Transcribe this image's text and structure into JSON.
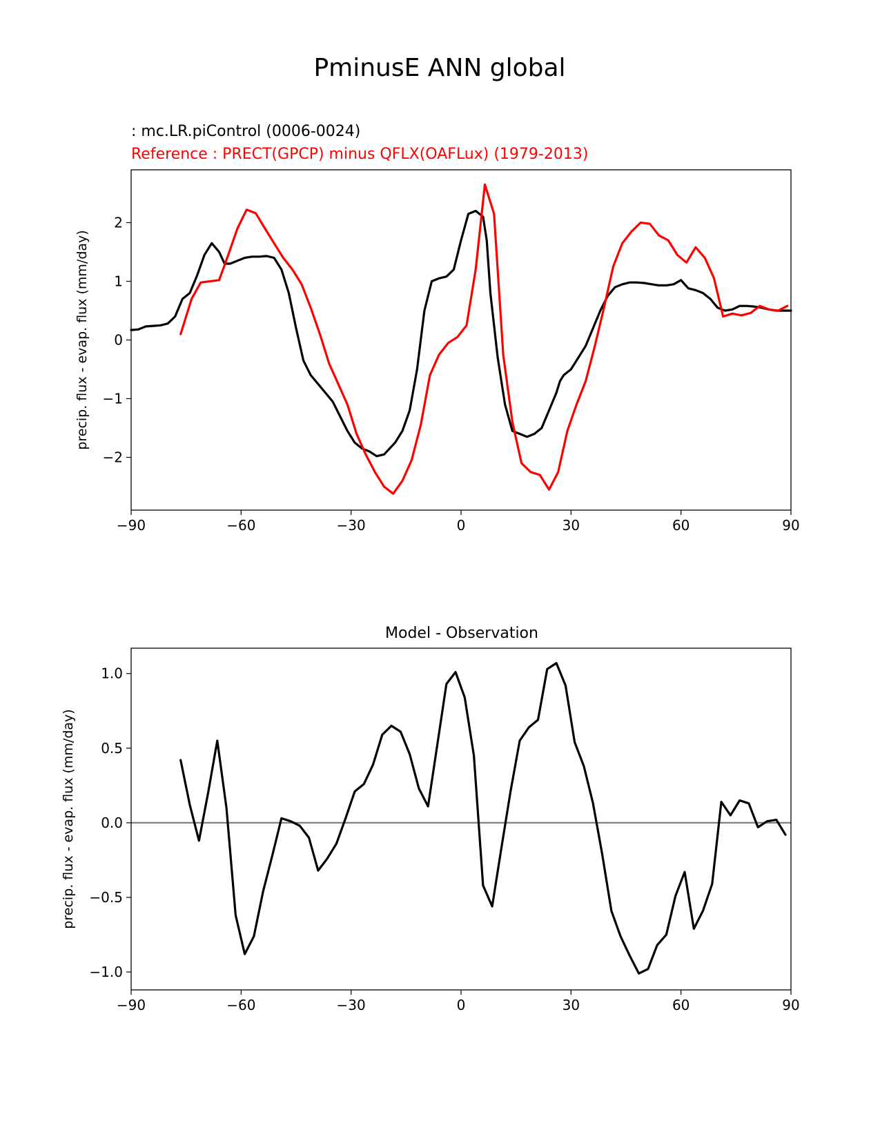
{
  "figure": {
    "title": "PminusE ANN global"
  },
  "chart_data": [
    {
      "type": "line",
      "test_label": " : mc.LR.piControl (0006-0024)",
      "ref_label": "Reference : PRECT(GPCP) minus QFLX(OAFLux) (1979-2013)",
      "ylabel": "precip. flux - evap. flux (mm/day)",
      "xlim": [
        -90,
        90
      ],
      "ylim": [
        -2.9,
        2.9
      ],
      "xticks": [
        -90,
        -60,
        -30,
        0,
        30,
        60,
        90
      ],
      "xtick_labels": [
        "−90",
        "−60",
        "−30",
        "0",
        "30",
        "60",
        "90"
      ],
      "yticks": [
        -2,
        -1,
        0,
        1,
        2
      ],
      "ytick_labels": [
        "−2",
        "−1",
        "0",
        "1",
        "2"
      ],
      "series": [
        {
          "name": "test",
          "color": "#000000",
          "x": [
            -90,
            -88,
            -86,
            -84,
            -82,
            -80,
            -78,
            -76,
            -74,
            -72,
            -70,
            -68,
            -66,
            -64.5,
            -63,
            -61,
            -59,
            -57,
            -55,
            -53,
            -51,
            -49,
            -47,
            -45,
            -43,
            -41,
            -39,
            -37,
            -35,
            -33,
            -31,
            -29,
            -27,
            -25,
            -23,
            -21,
            -19.5,
            -18,
            -16,
            -14,
            -12,
            -10,
            -8,
            -6,
            -4,
            -2,
            0,
            2,
            4,
            6,
            7,
            8,
            10,
            12,
            14,
            16,
            18,
            20,
            22,
            24,
            26,
            27,
            28,
            30,
            32,
            34,
            36,
            38,
            40,
            42,
            44,
            46,
            48,
            50,
            52,
            54,
            56,
            58,
            60,
            61,
            62,
            64,
            66,
            68,
            70,
            72,
            74,
            76,
            78,
            80,
            82,
            84,
            86,
            88,
            90
          ],
          "y": [
            0.17,
            0.18,
            0.23,
            0.24,
            0.25,
            0.28,
            0.4,
            0.7,
            0.8,
            1.1,
            1.45,
            1.65,
            1.5,
            1.3,
            1.3,
            1.35,
            1.4,
            1.42,
            1.42,
            1.43,
            1.4,
            1.2,
            0.8,
            0.2,
            -0.35,
            -0.6,
            -0.75,
            -0.9,
            -1.05,
            -1.3,
            -1.55,
            -1.75,
            -1.85,
            -1.9,
            -1.98,
            -1.95,
            -1.85,
            -1.75,
            -1.55,
            -1.2,
            -0.5,
            0.5,
            1.0,
            1.05,
            1.08,
            1.2,
            1.7,
            2.15,
            2.2,
            2.1,
            1.7,
            0.8,
            -0.3,
            -1.1,
            -1.55,
            -1.6,
            -1.65,
            -1.6,
            -1.5,
            -1.2,
            -0.9,
            -0.7,
            -0.6,
            -0.5,
            -0.3,
            -0.1,
            0.2,
            0.5,
            0.75,
            0.9,
            0.95,
            0.98,
            0.98,
            0.97,
            0.95,
            0.93,
            0.93,
            0.95,
            1.02,
            0.95,
            0.88,
            0.85,
            0.8,
            0.7,
            0.55,
            0.5,
            0.52,
            0.58,
            0.58,
            0.57,
            0.55,
            0.52,
            0.5,
            0.5,
            0.5
          ]
        },
        {
          "name": "reference",
          "color": "#ff0000",
          "x": [
            -76.5,
            -73.5,
            -71,
            -68.5,
            -66,
            -63.5,
            -61,
            -58.5,
            -56,
            -53.5,
            -51,
            -48.5,
            -46,
            -43.5,
            -41,
            -38.5,
            -36,
            -33.5,
            -31,
            -28.5,
            -26,
            -23.5,
            -21,
            -18.5,
            -16,
            -13.5,
            -11,
            -8.5,
            -6,
            -3.5,
            -1,
            1.5,
            4,
            6.5,
            9,
            11.5,
            14,
            16.5,
            19,
            21.5,
            24,
            26.5,
            29,
            31.5,
            34,
            36.5,
            39,
            41.5,
            44,
            46.5,
            49,
            51.5,
            54,
            56.5,
            59,
            61.5,
            64,
            66.5,
            69,
            71.5,
            74,
            76.5,
            79,
            81.5,
            84,
            86.5,
            89
          ],
          "y": [
            0.1,
            0.7,
            0.98,
            1.0,
            1.02,
            1.45,
            1.9,
            2.22,
            2.16,
            1.9,
            1.65,
            1.4,
            1.2,
            0.95,
            0.55,
            0.1,
            -0.4,
            -0.75,
            -1.1,
            -1.6,
            -1.95,
            -2.25,
            -2.5,
            -2.62,
            -2.4,
            -2.05,
            -1.45,
            -0.6,
            -0.25,
            -0.05,
            0.05,
            0.25,
            1.2,
            2.65,
            2.15,
            -0.25,
            -1.4,
            -2.1,
            -2.25,
            -2.3,
            -2.55,
            -2.25,
            -1.55,
            -1.1,
            -0.7,
            -0.1,
            0.55,
            1.25,
            1.65,
            1.85,
            2.0,
            1.98,
            1.78,
            1.7,
            1.45,
            1.32,
            1.58,
            1.4,
            1.05,
            0.4,
            0.45,
            0.42,
            0.46,
            0.58,
            0.52,
            0.5,
            0.58
          ]
        }
      ]
    },
    {
      "type": "line",
      "title": "Model - Observation",
      "ylabel": "precip. flux - evap. flux (mm/day)",
      "xlim": [
        -90,
        90
      ],
      "ylim": [
        -1.12,
        1.17
      ],
      "xticks": [
        -90,
        -60,
        -30,
        0,
        30,
        60,
        90
      ],
      "xtick_labels": [
        "−90",
        "−60",
        "−30",
        "0",
        "30",
        "60",
        "90"
      ],
      "yticks": [
        -1.0,
        -0.5,
        0.0,
        0.5,
        1.0
      ],
      "ytick_labels": [
        "−1.0",
        "−0.5",
        "0.0",
        "0.5",
        "1.0"
      ],
      "zero_line_color": "#808080",
      "series": [
        {
          "name": "difference",
          "color": "#000000",
          "x": [
            -76.5,
            -74,
            -71.5,
            -69,
            -66.5,
            -64,
            -61.5,
            -59,
            -56.5,
            -54,
            -51.5,
            -49,
            -46.5,
            -44,
            -41.5,
            -39,
            -36.5,
            -34,
            -31.5,
            -29,
            -26.5,
            -24,
            -21.5,
            -19,
            -16.5,
            -14,
            -11.5,
            -9,
            -6.5,
            -4,
            -1.5,
            1,
            3.5,
            6,
            8.5,
            11,
            13.5,
            16,
            18.5,
            21,
            23.5,
            26,
            28.5,
            31,
            33.5,
            36,
            38.5,
            41,
            43.5,
            46,
            48.5,
            51,
            53.5,
            56,
            58.5,
            61,
            63.5,
            66,
            68.5,
            71,
            73.5,
            76,
            78.5,
            81,
            83.5,
            86,
            88.5
          ],
          "y": [
            0.42,
            0.12,
            -0.12,
            0.2,
            0.55,
            0.1,
            -0.62,
            -0.88,
            -0.76,
            -0.46,
            -0.22,
            0.03,
            0.01,
            -0.02,
            -0.1,
            -0.32,
            -0.24,
            -0.14,
            0.03,
            0.21,
            0.26,
            0.39,
            0.59,
            0.65,
            0.61,
            0.46,
            0.23,
            0.11,
            0.52,
            0.93,
            1.01,
            0.84,
            0.45,
            -0.42,
            -0.56,
            -0.17,
            0.21,
            0.55,
            0.64,
            0.69,
            1.03,
            1.07,
            0.92,
            0.54,
            0.38,
            0.13,
            -0.21,
            -0.59,
            -0.76,
            -0.89,
            -1.01,
            -0.98,
            -0.82,
            -0.75,
            -0.49,
            -0.33,
            -0.71,
            -0.59,
            -0.41,
            0.14,
            0.05,
            0.15,
            0.13,
            -0.03,
            0.01,
            0.02,
            -0.08
          ]
        }
      ]
    }
  ]
}
